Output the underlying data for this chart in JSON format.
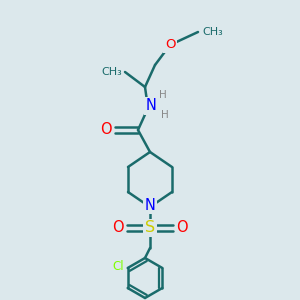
{
  "bg_color": "#dce8ec",
  "bond_color": "#1a6b6b",
  "bond_width": 1.8,
  "atom_colors": {
    "O": "#ff0000",
    "N": "#0000ff",
    "S": "#cccc00",
    "Cl": "#7fff00",
    "H": "#888888",
    "C": "#1a6b6b"
  },
  "font_size": 8.5
}
